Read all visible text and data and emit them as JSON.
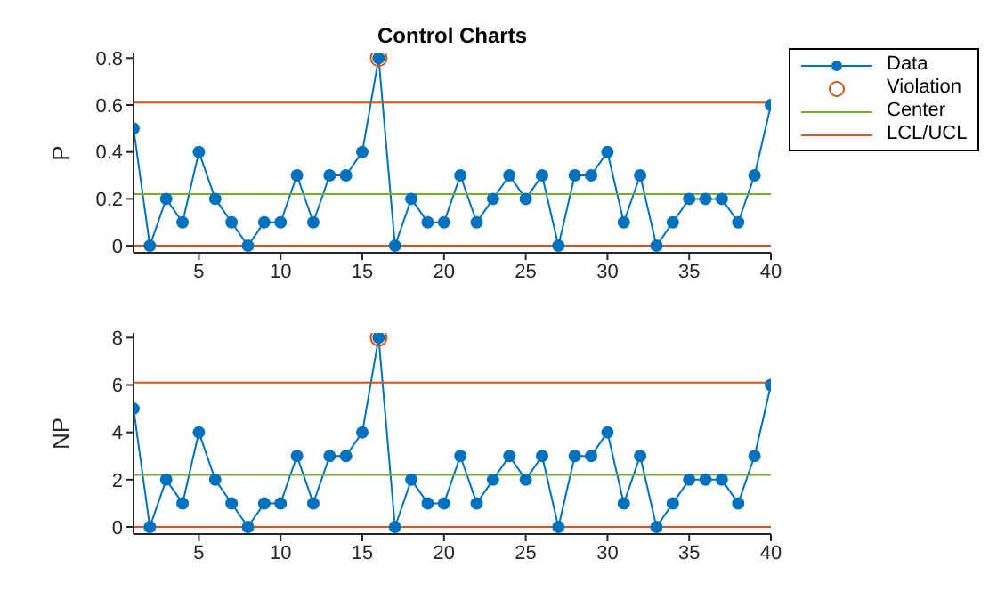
{
  "chart_data": [
    {
      "type": "line",
      "title": "Control Charts",
      "ylabel": "P",
      "xlim": [
        1,
        40
      ],
      "xticks": [
        5,
        10,
        15,
        20,
        25,
        30,
        35,
        40
      ],
      "ylim": [
        -0.03,
        0.82
      ],
      "yticks": [
        0,
        0.2,
        0.4,
        0.6,
        0.8
      ],
      "legend": "right",
      "series": [
        {
          "name": "Data",
          "color": "#0072bd",
          "marker": "circle",
          "x": [
            1,
            2,
            3,
            4,
            5,
            6,
            7,
            8,
            9,
            10,
            11,
            12,
            13,
            14,
            15,
            16,
            17,
            18,
            19,
            20,
            21,
            22,
            23,
            24,
            25,
            26,
            27,
            28,
            29,
            30,
            31,
            32,
            33,
            34,
            35,
            36,
            37,
            38,
            39,
            40
          ],
          "values": [
            0.5,
            0,
            0.2,
            0.1,
            0.4,
            0.2,
            0.1,
            0,
            0.1,
            0.1,
            0.3,
            0.1,
            0.3,
            0.3,
            0.4,
            0.8,
            0,
            0.2,
            0.1,
            0.1,
            0.3,
            0.1,
            0.2,
            0.3,
            0.2,
            0.3,
            0,
            0.3,
            0.3,
            0.4,
            0.1,
            0.3,
            0,
            0.1,
            0.2,
            0.2,
            0.2,
            0.1,
            0.3,
            0.6
          ]
        },
        {
          "name": "Violation",
          "type": "scatter",
          "color": "#d95319",
          "marker": "circle",
          "x": [
            16
          ],
          "values": [
            0.8
          ]
        },
        {
          "name": "Center",
          "color": "#77ac30",
          "marker": "none",
          "x": [
            1,
            40
          ],
          "values": [
            0.22,
            0.22
          ]
        },
        {
          "name": "LCL/UCL",
          "color": "#d95319",
          "marker": "none",
          "x": [
            1,
            40
          ],
          "values": [
            0,
            0
          ]
        },
        {
          "color": "#d95319",
          "marker": "none",
          "x": [
            1,
            40
          ],
          "values": [
            0.61,
            0.61
          ]
        }
      ]
    },
    {
      "type": "line",
      "ylabel": "NP",
      "xlim": [
        1,
        40
      ],
      "xticks": [
        5,
        10,
        15,
        20,
        25,
        30,
        35,
        40
      ],
      "ylim": [
        -0.3,
        8.2
      ],
      "yticks": [
        0,
        2,
        4,
        6,
        8
      ],
      "series": [
        {
          "color": "#0072bd",
          "marker": "circle",
          "x": [
            1,
            2,
            3,
            4,
            5,
            6,
            7,
            8,
            9,
            10,
            11,
            12,
            13,
            14,
            15,
            16,
            17,
            18,
            19,
            20,
            21,
            22,
            23,
            24,
            25,
            26,
            27,
            28,
            29,
            30,
            31,
            32,
            33,
            34,
            35,
            36,
            37,
            38,
            39,
            40
          ],
          "values": [
            5,
            0,
            2,
            1,
            4,
            2,
            1,
            0,
            1,
            1,
            3,
            1,
            3,
            3,
            4,
            8,
            0,
            2,
            1,
            1,
            3,
            1,
            2,
            3,
            2,
            3,
            0,
            3,
            3,
            4,
            1,
            3,
            0,
            1,
            2,
            2,
            2,
            1,
            3,
            6
          ]
        },
        {
          "type": "scatter",
          "color": "#d95319",
          "marker": "circle",
          "x": [
            16
          ],
          "values": [
            8
          ]
        },
        {
          "color": "#77ac30",
          "marker": "none",
          "x": [
            1,
            40
          ],
          "values": [
            2.2,
            2.2
          ]
        },
        {
          "color": "#d95319",
          "marker": "none",
          "x": [
            1,
            40
          ],
          "values": [
            0,
            0
          ]
        },
        {
          "color": "#d95319",
          "marker": "none",
          "x": [
            1,
            40
          ],
          "values": [
            6.1,
            6.1
          ]
        }
      ]
    }
  ]
}
